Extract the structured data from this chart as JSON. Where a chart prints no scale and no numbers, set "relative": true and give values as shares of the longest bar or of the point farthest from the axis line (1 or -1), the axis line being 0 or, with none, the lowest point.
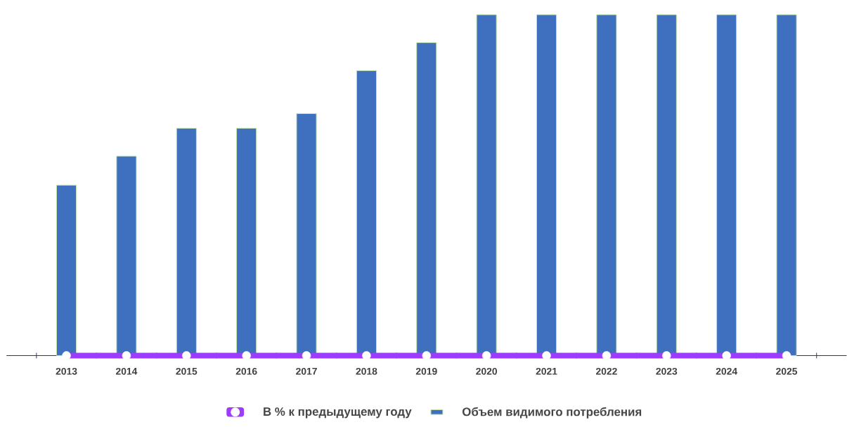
{
  "chart_data": {
    "type": "bar",
    "relative": true,
    "categories": [
      "2013",
      "2014",
      "2015",
      "2016",
      "2017",
      "2018",
      "2019",
      "2020",
      "2021",
      "2022",
      "2023",
      "2024",
      "2025"
    ],
    "series": [
      {
        "name": "В % к предыдущему году",
        "type": "line",
        "color": "#9b3cff",
        "marker": "circle",
        "values": [
          0,
          0,
          0,
          0,
          0,
          0,
          0,
          0,
          0,
          0,
          0,
          0,
          0
        ]
      },
      {
        "name": "Объем видимого потребления",
        "color": "#3f6fbf",
        "values": [
          0.5,
          0.585,
          0.667,
          0.667,
          0.71,
          0.836,
          0.918,
          1,
          1,
          1,
          1,
          1,
          1
        ]
      }
    ],
    "legend": "bottom"
  }
}
